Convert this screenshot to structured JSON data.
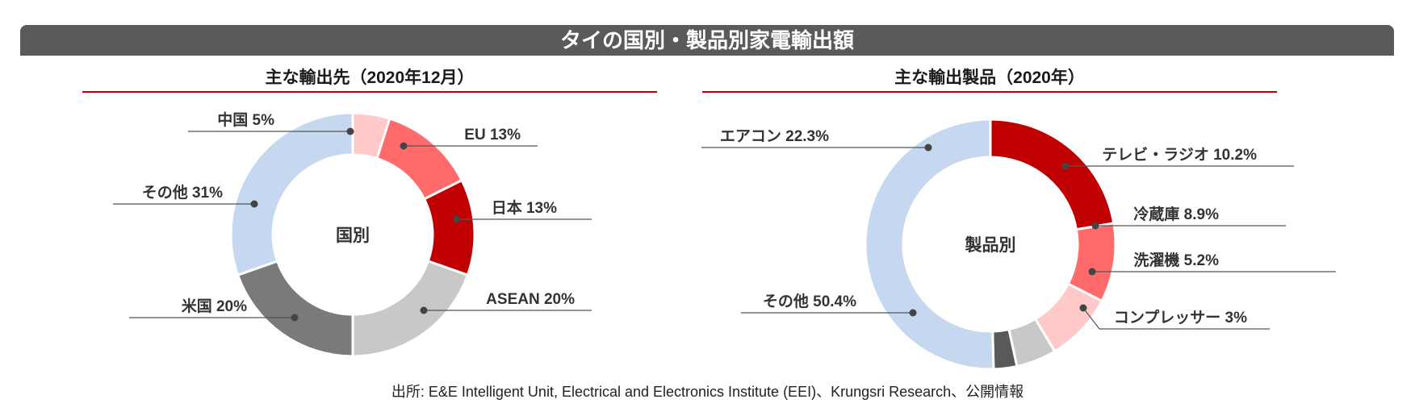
{
  "title": "タイの国別・製品別家電輸出額",
  "source": "出所: E&E Intelligent Unit, Electrical and Electronics Institute (EEI)、Krungsri Research、公開情報",
  "chart_data": [
    {
      "type": "pie",
      "subtitle": "主な輸出先（2020年12月）",
      "center_label": "国別",
      "unit": "%",
      "categories": [
        "中国",
        "EU",
        "日本",
        "ASEAN",
        "米国",
        "その他"
      ],
      "values": [
        5,
        13,
        13,
        20,
        20,
        31
      ],
      "data_labels": [
        "中国 5%",
        "EU 13%",
        "日本 13%",
        "ASEAN 20%",
        "米国 20%",
        "その他 31%"
      ],
      "colors": [
        "#ffc9c9",
        "#ff6b6b",
        "#c00000",
        "#c8c8c8",
        "#7a7a7a",
        "#c5d8f0"
      ]
    },
    {
      "type": "pie",
      "subtitle": "主な輸出製品（2020年）",
      "center_label": "製品別",
      "unit": "%",
      "categories": [
        "エアコン",
        "テレビ・ラジオ",
        "冷蔵庫",
        "洗濯機",
        "コンプレッサー",
        "その他"
      ],
      "values": [
        22.3,
        10.2,
        8.9,
        5.2,
        3,
        50.4
      ],
      "data_labels": [
        "エアコン 22.3%",
        "テレビ・ラジオ 10.2%",
        "冷蔵庫 8.9%",
        "洗濯機 5.2%",
        "コンプレッサー 3%",
        "その他 50.4%"
      ],
      "colors": [
        "#c00000",
        "#ff6b6b",
        "#ffc9c9",
        "#c8c8c8",
        "#595959",
        "#c5d8f0"
      ]
    }
  ]
}
